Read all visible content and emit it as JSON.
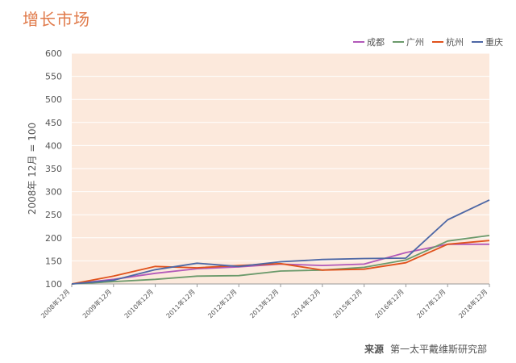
{
  "page": {
    "title": "增长市场"
  },
  "source": {
    "label": "来源",
    "text": "第一太平戴维斯研究部"
  },
  "chart_data": {
    "type": "line",
    "title": "",
    "xlabel": "",
    "ylabel": "2008年 12月 = 100",
    "ylim": [
      100,
      600
    ],
    "yticks": [
      100,
      150,
      200,
      250,
      300,
      350,
      400,
      450,
      500,
      550,
      600
    ],
    "categories": [
      "2008年12月",
      "2009年12月",
      "2010年12月",
      "2011年12月",
      "2012年12月",
      "2013年12月",
      "2014年12月",
      "2015年12月",
      "2016年12月",
      "2017年12月",
      "2018年12月"
    ],
    "series": [
      {
        "name": "成都",
        "color": "#b259b9",
        "values": [
          100,
          110,
          123,
          133,
          137,
          143,
          140,
          143,
          168,
          186,
          186
        ]
      },
      {
        "name": "广州",
        "color": "#6b9a6b",
        "values": [
          100,
          105,
          110,
          117,
          118,
          128,
          130,
          136,
          152,
          193,
          205
        ]
      },
      {
        "name": "杭州",
        "color": "#e0521c",
        "values": [
          100,
          117,
          138,
          135,
          140,
          144,
          130,
          132,
          146,
          186,
          194
        ]
      },
      {
        "name": "重庆",
        "color": "#4d67a5",
        "values": [
          100,
          108,
          131,
          145,
          138,
          148,
          153,
          155,
          156,
          239,
          282
        ]
      }
    ],
    "grid": true,
    "legend_position": "top-right",
    "plot_background": "#fce9dc"
  }
}
